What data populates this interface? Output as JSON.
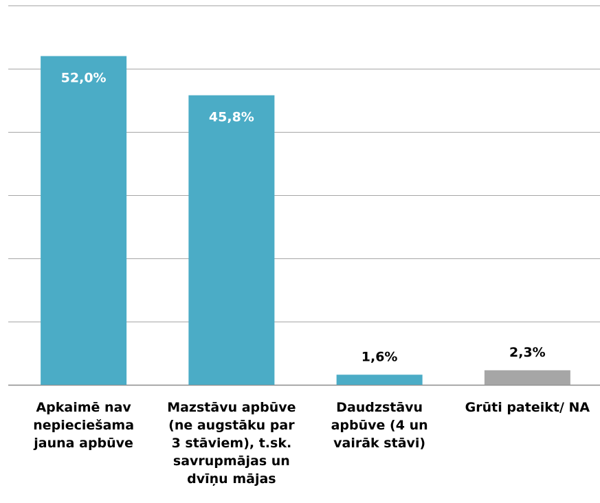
{
  "chart_data": {
    "type": "bar",
    "categories": [
      "Apkaimē nav nepieciešama jauna apbūve",
      "Mazstāvu apbūve (ne augstāku par 3 stāviem), t.sk. savrupmājas un dvīņu mājas",
      "Daudzstāvu apbūve (4 un vairāk stāvi)",
      "Grūti pateikt/ NA"
    ],
    "values": [
      52.0,
      45.8,
      1.6,
      2.3
    ],
    "data_labels": [
      "52,0%",
      "45,8%",
      "1,6%",
      "2,3%"
    ],
    "colors": [
      "#4BACC6",
      "#4BACC6",
      "#4BACC6",
      "#A6A6A6"
    ],
    "ylim": [
      0,
      60
    ],
    "grid": true,
    "legend": "none"
  }
}
